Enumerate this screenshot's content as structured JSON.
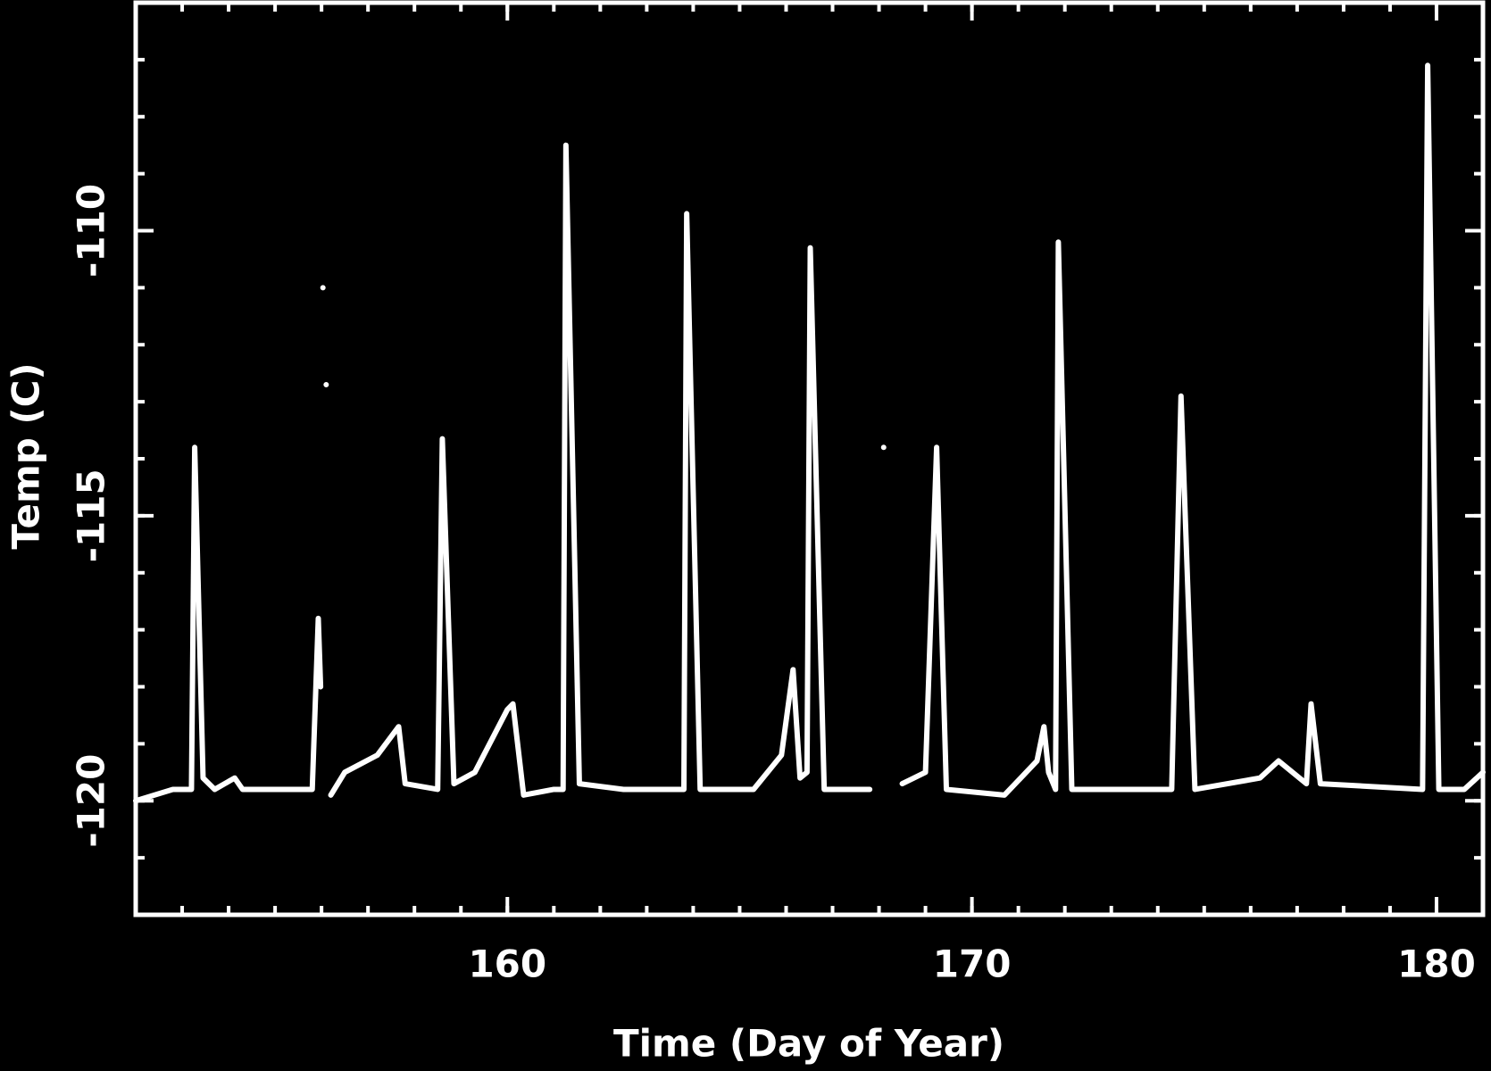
{
  "chart_data": {
    "type": "line",
    "x_label": "Time (Day of Year)",
    "y_label": "Temp (C)",
    "x": [
      152.0,
      152.8,
      153.2,
      153.27,
      153.45,
      153.7,
      154.13,
      154.3,
      155.8,
      155.93,
      155.98,
      156.01,
      156.03,
      156.06,
      156.1,
      156.13,
      156.2,
      156.5,
      157.2,
      157.66,
      157.8,
      158.5,
      158.6,
      158.85,
      159.3,
      160.0,
      160.12,
      160.35,
      161.0,
      161.2,
      161.26,
      161.55,
      162.5,
      163.8,
      163.86,
      164.15,
      165.3,
      165.9,
      166.15,
      166.3,
      166.45,
      166.52,
      166.82,
      167.8,
      168.05,
      168.1,
      168.15,
      168.5,
      169.0,
      169.24,
      169.45,
      170.7,
      171.4,
      171.55,
      171.65,
      171.8,
      171.86,
      172.15,
      174.3,
      174.5,
      174.8,
      176.2,
      176.6,
      177.2,
      177.3,
      177.5,
      179.7,
      179.81,
      180.05,
      180.6,
      181.0
    ],
    "values": [
      -120.0,
      -119.8,
      -119.8,
      -113.8,
      -119.6,
      -119.8,
      -119.6,
      -119.8,
      -119.8,
      -116.8,
      -118.0,
      null,
      -111.0,
      null,
      -112.7,
      null,
      -119.9,
      -119.5,
      -119.2,
      -118.7,
      -119.7,
      -119.8,
      -113.65,
      -119.7,
      -119.5,
      -118.4,
      -118.3,
      -119.9,
      -119.8,
      -119.8,
      -108.5,
      -119.7,
      -119.8,
      -119.8,
      -109.7,
      -119.8,
      -119.8,
      -119.2,
      -117.7,
      -119.6,
      -119.5,
      -110.3,
      -119.8,
      -119.8,
      null,
      -113.8,
      null,
      -119.7,
      -119.5,
      -113.8,
      -119.8,
      -119.9,
      -119.3,
      -118.7,
      -119.5,
      -119.8,
      -110.2,
      -119.8,
      -119.8,
      -112.9,
      -119.8,
      -119.6,
      -119.3,
      -119.7,
      -118.3,
      -119.7,
      -119.8,
      -107.1,
      -119.8,
      -119.8,
      -119.5
    ],
    "color": "#ffffff",
    "xlim": [
      152,
      181
    ],
    "xticks": [
      160,
      170,
      180
    ],
    "x_minor_step": 1,
    "ylim": [
      -122,
      -106
    ],
    "yticks": [
      -120,
      -115,
      -110
    ],
    "y_minor_step": 1
  }
}
